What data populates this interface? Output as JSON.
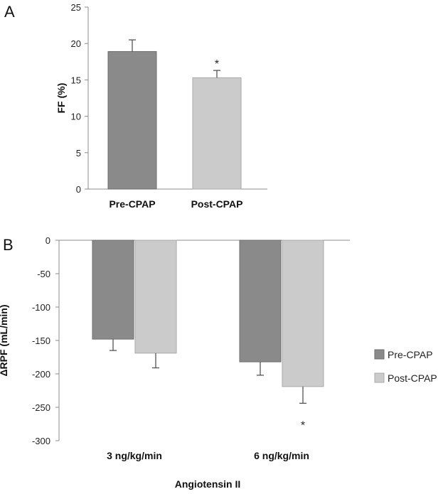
{
  "colors": {
    "pre": "#8a8a8a",
    "post": "#cbcbcb",
    "pre_edge": "#6e6e6e",
    "post_edge": "#a9a9a9"
  },
  "chart_data": [
    {
      "panel": "A",
      "type": "bar",
      "ylabel": "FF (%)",
      "ylim": [
        0,
        25
      ],
      "yticks": [
        0,
        5,
        10,
        15,
        20,
        25
      ],
      "categories": [
        "Pre-CPAP",
        "Post-CPAP"
      ],
      "values": [
        18.9,
        15.3
      ],
      "errors": [
        1.6,
        1.0
      ],
      "significance": [
        "",
        "*"
      ]
    },
    {
      "panel": "B",
      "type": "bar",
      "ylabel": "ΔRPF (mL/min)",
      "xlabel": "Angiotensin II",
      "ylim": [
        -300,
        0
      ],
      "yticks": [
        0,
        -50,
        -100,
        -150,
        -200,
        -250,
        -300
      ],
      "categories": [
        "3 ng/kg/min",
        "6 ng/kg/min"
      ],
      "series": [
        {
          "name": "Pre-CPAP",
          "values": [
            -148,
            -182
          ],
          "errors": [
            17,
            20
          ]
        },
        {
          "name": "Post-CPAP",
          "values": [
            -169,
            -219
          ],
          "errors": [
            22,
            25
          ]
        }
      ],
      "significance": [
        "",
        "*"
      ],
      "legend": "right"
    }
  ]
}
